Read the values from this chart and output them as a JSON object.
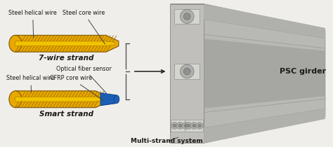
{
  "bg_color": "#f0eeea",
  "strand1_label": "7-wire strand",
  "strand2_label": "Smart strand",
  "system_label": "Multi-strand system",
  "girder_label": "PSC girder",
  "strand1_annotations": [
    "Steel core wire",
    "Steel helical wire"
  ],
  "strand2_annotations": [
    "Optical fiber sensor",
    "CFRP core wire",
    "Steel helical wire"
  ],
  "gold_outer": "#E8A800",
  "gold_inner": "#F5C800",
  "gold_dark": "#A07000",
  "gold_edge": "#7A5500",
  "blue_sensor": "#1a5fb4",
  "blue_edge": "#0a3d8f",
  "girder_face": "#c8c8c4",
  "girder_top": "#a0a09c",
  "girder_side": "#b0b0ac",
  "girder_dark": "#888884",
  "text_color": "#1a1a1a",
  "arrow_color": "#333333",
  "brace_color": "#555555",
  "plate_color": "#d8d8d4",
  "bolt_color": "#a0a09c"
}
